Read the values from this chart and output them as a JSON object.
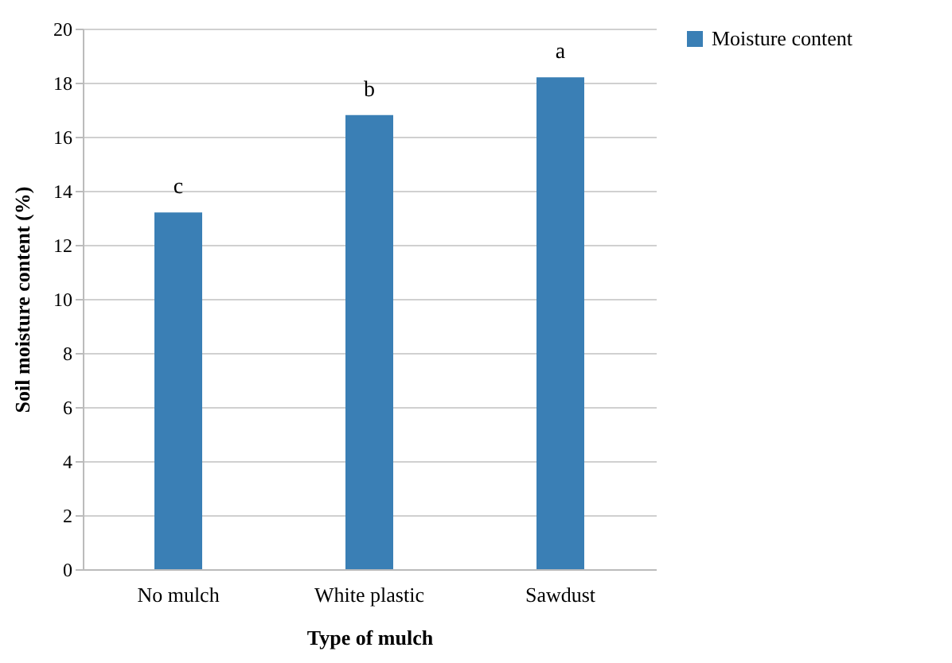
{
  "chart_data": {
    "type": "bar",
    "xlabel": "Type of mulch",
    "ylabel": "Soil moisture content (%)",
    "categories": [
      "No mulch",
      "White plastic",
      "Sawdust"
    ],
    "series": [
      {
        "name": "Moisture content",
        "color": "#3a7fb5",
        "values": [
          13.2,
          16.8,
          18.2
        ]
      }
    ],
    "ylim": [
      0,
      20
    ],
    "yticks": [
      0,
      2,
      4,
      6,
      8,
      10,
      12,
      14,
      16,
      18,
      20
    ],
    "grid": "y",
    "legend": "right",
    "annotations": [
      {
        "text": "c",
        "x": "No mulch",
        "y": 13.2
      },
      {
        "text": "b",
        "x": "White plastic",
        "y": 16.8
      },
      {
        "text": "a",
        "x": "Sawdust",
        "y": 18.2
      }
    ]
  }
}
